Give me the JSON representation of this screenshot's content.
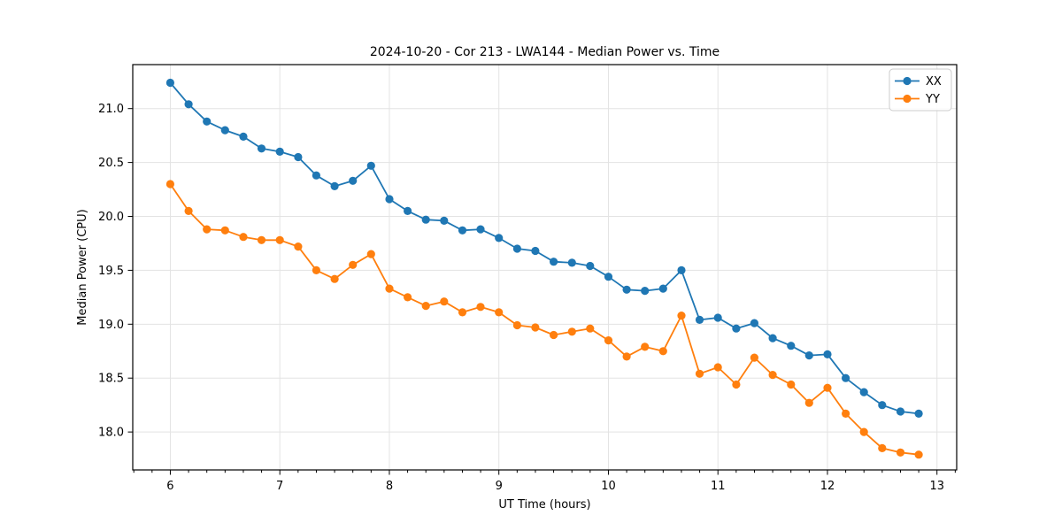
{
  "figure": {
    "title": "2024-10-20 - Cor 213 - LWA144 - Median Power vs. Time",
    "background": "#ffffff"
  },
  "chart_data": {
    "type": "line",
    "title": "2024-10-20 - Cor 213 - LWA144 - Median Power vs. Time",
    "xlabel": "UT Time (hours)",
    "ylabel": "Median Power (CPU)",
    "xlim": [
      5.657,
      13.18
    ],
    "ylim": [
      17.648,
      21.408
    ],
    "x_ticks": [
      6,
      7,
      8,
      9,
      10,
      11,
      12,
      13
    ],
    "y_ticks": [
      18.0,
      18.5,
      19.0,
      19.5,
      20.0,
      20.5,
      21.0
    ],
    "x_minor_divisions": 6,
    "grid": true,
    "grid_color": "#e3e3e3",
    "legend_position": "upper right",
    "x": [
      6.0,
      6.167,
      6.333,
      6.5,
      6.667,
      6.833,
      7.0,
      7.167,
      7.333,
      7.5,
      7.667,
      7.833,
      8.0,
      8.167,
      8.333,
      8.5,
      8.667,
      8.833,
      9.0,
      9.167,
      9.333,
      9.5,
      9.667,
      9.833,
      10.0,
      10.167,
      10.333,
      10.5,
      10.667,
      10.833,
      11.0,
      11.167,
      11.333,
      11.5,
      11.667,
      11.833,
      12.0,
      12.167,
      12.333,
      12.5,
      12.667,
      12.833
    ],
    "series": [
      {
        "name": "XX",
        "color": "#1f77b4",
        "values": [
          21.24,
          21.04,
          20.88,
          20.8,
          20.74,
          20.63,
          20.6,
          20.55,
          20.38,
          20.28,
          20.33,
          20.47,
          20.16,
          20.05,
          19.97,
          19.96,
          19.87,
          19.88,
          19.8,
          19.7,
          19.68,
          19.58,
          19.57,
          19.54,
          19.44,
          19.32,
          19.31,
          19.33,
          19.5,
          19.04,
          19.06,
          18.96,
          19.01,
          18.87,
          18.8,
          18.71,
          18.72,
          18.5,
          18.37,
          18.25,
          18.19,
          18.17
        ]
      },
      {
        "name": "YY",
        "color": "#ff7f0e",
        "values": [
          20.3,
          20.05,
          19.88,
          19.87,
          19.81,
          19.78,
          19.78,
          19.72,
          19.5,
          19.42,
          19.55,
          19.65,
          19.33,
          19.25,
          19.17,
          19.21,
          19.11,
          19.16,
          19.11,
          18.99,
          18.97,
          18.9,
          18.93,
          18.96,
          18.85,
          18.7,
          18.79,
          18.75,
          19.08,
          18.54,
          18.6,
          18.44,
          18.69,
          18.53,
          18.44,
          18.27,
          18.41,
          18.17,
          18.0,
          17.85,
          17.81,
          17.79
        ]
      }
    ]
  }
}
